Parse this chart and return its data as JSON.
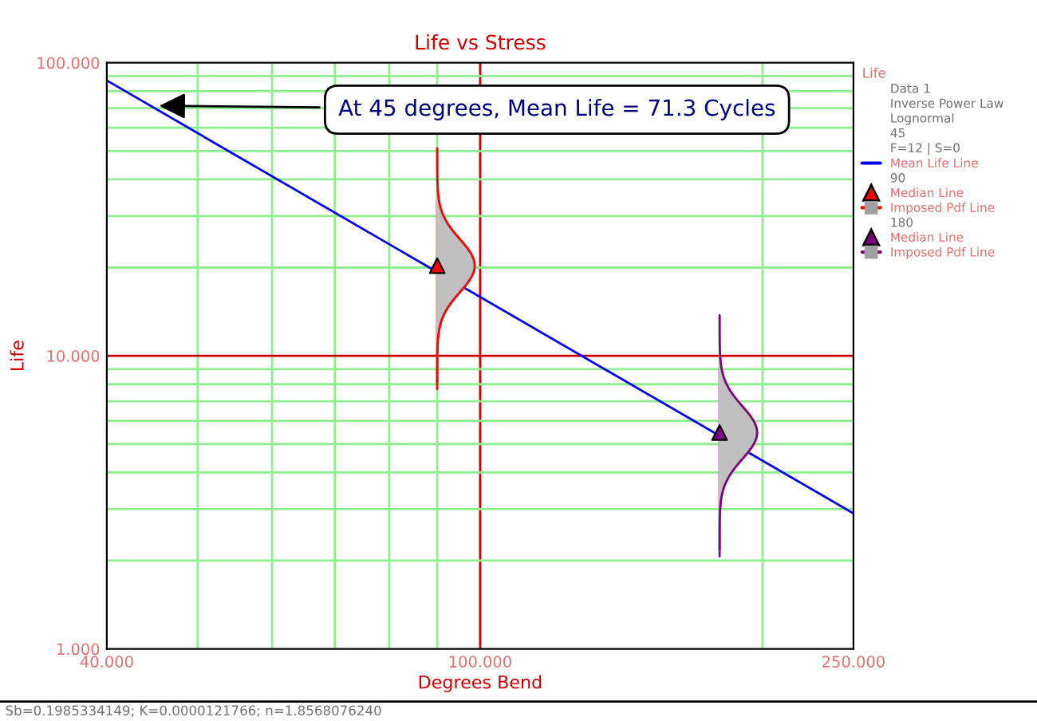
{
  "chart_data": {
    "type": "line",
    "title": "Life vs Stress",
    "xlabel": "Degrees Bend",
    "ylabel": "Life",
    "legend_title": "Life",
    "log": "xy",
    "grid": true,
    "legend": "right",
    "xlim": [
      40,
      250
    ],
    "xticks": [
      {
        "value": 40,
        "label": "40.000"
      },
      {
        "value": 50,
        "label": null
      },
      {
        "value": 60,
        "label": null
      },
      {
        "value": 70,
        "label": null
      },
      {
        "value": 80,
        "label": null
      },
      {
        "value": 90,
        "label": null
      },
      {
        "value": 100,
        "label": "100.000"
      },
      {
        "value": 200,
        "label": null
      },
      {
        "value": 250,
        "label": "250.000"
      }
    ],
    "ylim": [
      1,
      100
    ],
    "yticks": [
      {
        "value": 1,
        "label": "1.000"
      },
      {
        "value": 2,
        "label": null
      },
      {
        "value": 3,
        "label": null
      },
      {
        "value": 4,
        "label": null
      },
      {
        "value": 5,
        "label": null
      },
      {
        "value": 6,
        "label": null
      },
      {
        "value": 7,
        "label": null
      },
      {
        "value": 8,
        "label": null
      },
      {
        "value": 9,
        "label": null
      },
      {
        "value": 10,
        "label": "10.000"
      },
      {
        "value": 20,
        "label": null
      },
      {
        "value": 30,
        "label": null
      },
      {
        "value": 40,
        "label": null
      },
      {
        "value": 50,
        "label": null
      },
      {
        "value": 60,
        "label": null
      },
      {
        "value": 70,
        "label": null
      },
      {
        "value": 80,
        "label": null
      },
      {
        "value": 90,
        "label": null
      },
      {
        "value": 100,
        "label": "100.000"
      }
    ],
    "series": [
      {
        "name": "Mean Life Line",
        "color": "#0000ff",
        "x": [
          40,
          250
        ],
        "values": [
          87.0,
          2.9
        ]
      },
      {
        "name": "Median Line",
        "type": "scatter",
        "marker": "triangle",
        "color": "#ff0000",
        "x": [
          90
        ],
        "values": [
          20.3
        ]
      },
      {
        "name": "Imposed Pdf Line",
        "color": "#ff0000",
        "x": [
          90,
          90
        ],
        "values": [
          33.8,
          7.7
        ]
      },
      {
        "name": "Median Line",
        "type": "scatter",
        "marker": "triangle",
        "color": "#800080",
        "x": [
          180
        ],
        "values": [
          5.47
        ]
      },
      {
        "name": "Imposed Pdf Line",
        "color": "#800080",
        "x": [
          180,
          180
        ],
        "values": [
          9.1,
          2.07
        ]
      }
    ],
    "annotations": [
      {
        "text": "At 45 degrees, Mean Life = 71.3 Cycles",
        "x": 45,
        "y": 71.3
      },
      "Data 1",
      "Inverse Power Law",
      "Lognormal",
      "45",
      "F=12 | S=0",
      "90",
      "180",
      "Sb=0.1985334149; K=0.0000121766; n=1.8568076240"
    ]
  }
}
